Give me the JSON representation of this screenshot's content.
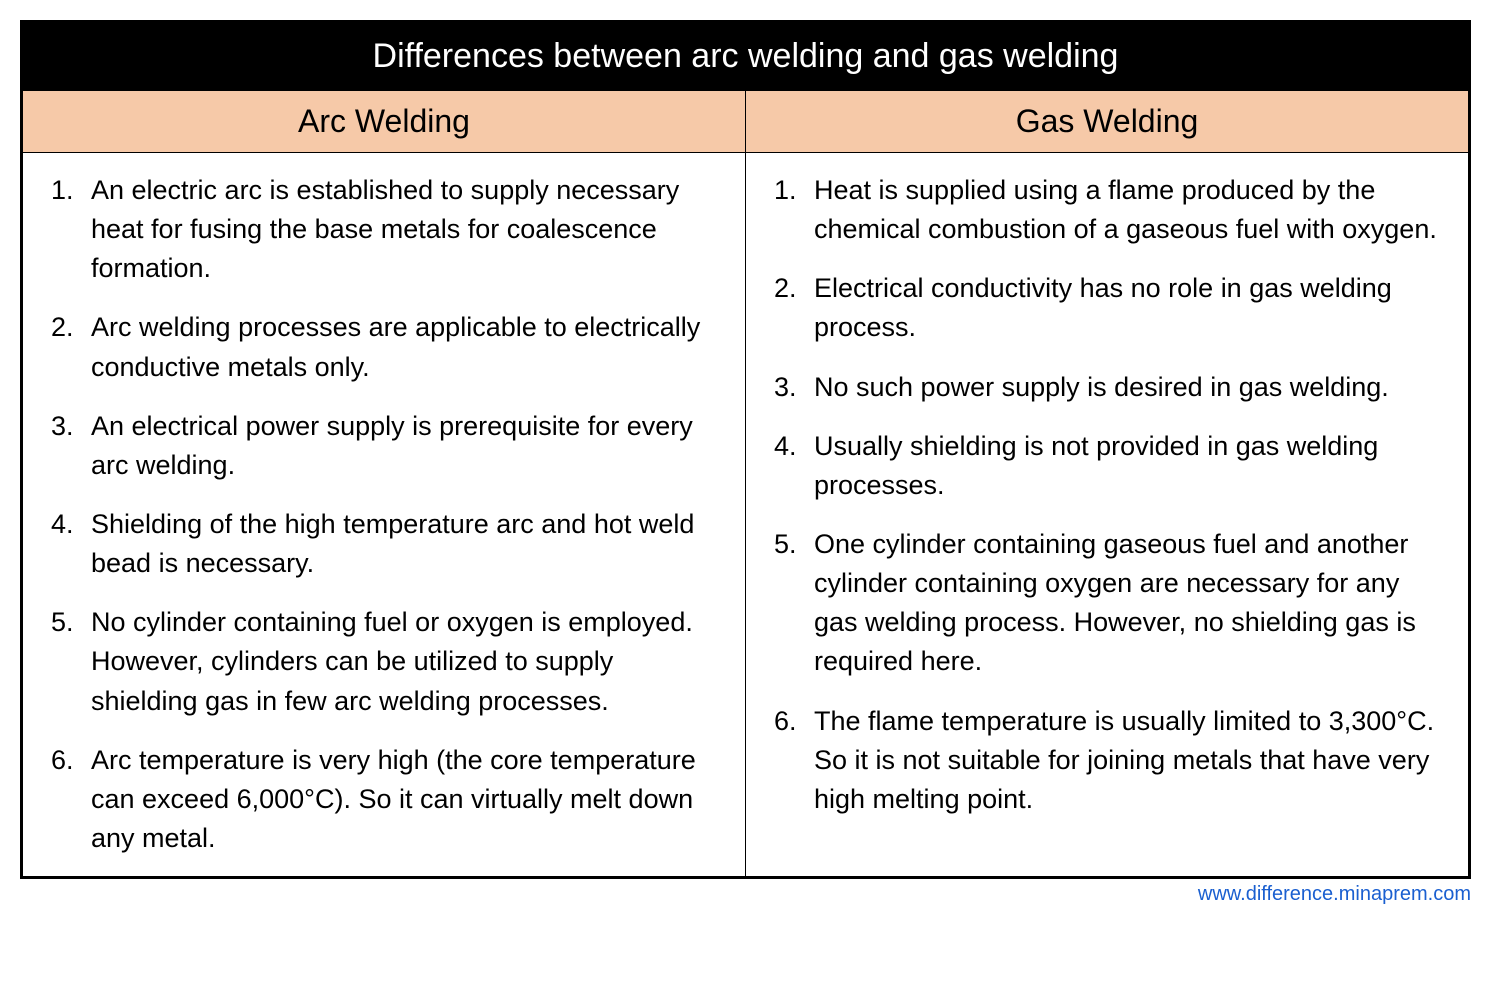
{
  "title": "Differences between arc welding and gas welding",
  "columns": {
    "left_header": "Arc Welding",
    "right_header": "Gas Welding"
  },
  "arc_welding_items": [
    "An electric arc is established to supply necessary heat for fusing the base metals for coalescence formation.",
    "Arc welding processes are applicable to electrically conductive metals only.",
    "An electrical power supply is prerequisite for every arc welding.",
    "Shielding of the high temperature arc and hot weld bead is necessary.",
    "No cylinder containing fuel or oxygen is employed. However, cylinders can be utilized to supply shielding gas in few arc welding processes.",
    "Arc temperature is very high (the core temperature can exceed 6,000°C). So it can virtually melt down any metal."
  ],
  "gas_welding_items": [
    "Heat is supplied using a flame produced by the chemical combustion of a gaseous fuel with oxygen.",
    "Electrical conductivity has no role in gas welding process.",
    "No such power supply is desired in gas welding.",
    "Usually shielding is not provided in gas welding processes.",
    "One cylinder containing gaseous fuel and another cylinder containing oxygen are necessary for any gas welding process. However, no shielding gas is required here.",
    "The flame temperature is usually limited to 3,300°C. So it is not suitable for joining metals that have very high melting point."
  ],
  "source_url": "www.difference.minaprem.com",
  "styles": {
    "title_bg": "#000000",
    "title_color": "#ffffff",
    "title_fontsize": 34,
    "header_bg": "#f6c9a8",
    "header_color": "#000000",
    "header_fontsize": 32,
    "body_bg": "#ffffff",
    "body_color": "#000000",
    "body_fontsize": 27,
    "border_color": "#000000",
    "source_color": "#1a5fd0",
    "source_fontsize": 20
  }
}
